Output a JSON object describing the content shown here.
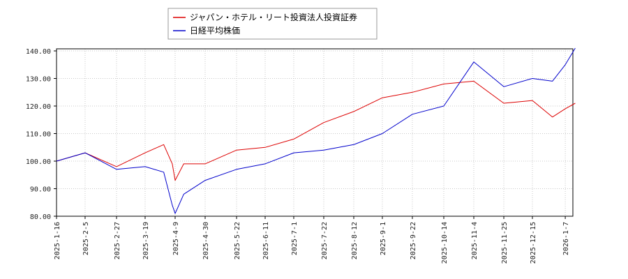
{
  "chart_data": {
    "type": "line",
    "grid": true,
    "legend_position": "top-center",
    "ylim": [
      80,
      142
    ],
    "y_ticks": [
      "80.00",
      "90.00",
      "100.00",
      "110.00",
      "120.00",
      "130.00",
      "140.00"
    ],
    "x_ticks": [
      "2025-1-16",
      "2025-2-5",
      "2025-2-27",
      "2025-3-19",
      "2025-4-9",
      "2025-4-30",
      "2025-5-22",
      "2025-6-11",
      "2025-7-1",
      "2025-7-22",
      "2025-8-12",
      "2025-9-1",
      "2025-9-22",
      "2025-10-14",
      "2025-11-4",
      "2025-11-25",
      "2025-12-15",
      "2026-1-7"
    ],
    "x": [
      "2025-1-16",
      "2025-2-5",
      "2025-2-27",
      "2025-3-19",
      "2025-4-1",
      "2025-4-7",
      "2025-4-9",
      "2025-4-15",
      "2025-4-30",
      "2025-5-22",
      "2025-6-11",
      "2025-7-1",
      "2025-7-22",
      "2025-8-12",
      "2025-9-1",
      "2025-9-22",
      "2025-10-14",
      "2025-11-4",
      "2025-11-25",
      "2025-12-15",
      "2025-12-29",
      "2026-1-7",
      "2026-1-14"
    ],
    "series": [
      {
        "name": "ジャパン・ホテル・リート投資法人投資証券",
        "color": "#dd0000",
        "values": [
          100,
          103,
          98,
          103,
          106,
          99,
          93,
          99,
          99,
          104,
          105,
          108,
          114,
          118,
          123,
          125,
          128,
          129,
          121,
          122,
          116,
          119,
          121
        ]
      },
      {
        "name": "日経平均株価",
        "color": "#0000cc",
        "values": [
          100,
          103,
          97,
          98,
          96,
          84,
          81,
          88,
          93,
          97,
          99,
          103,
          104,
          106,
          110,
          117,
          120,
          136,
          127,
          130,
          129,
          135,
          141
        ]
      }
    ]
  }
}
